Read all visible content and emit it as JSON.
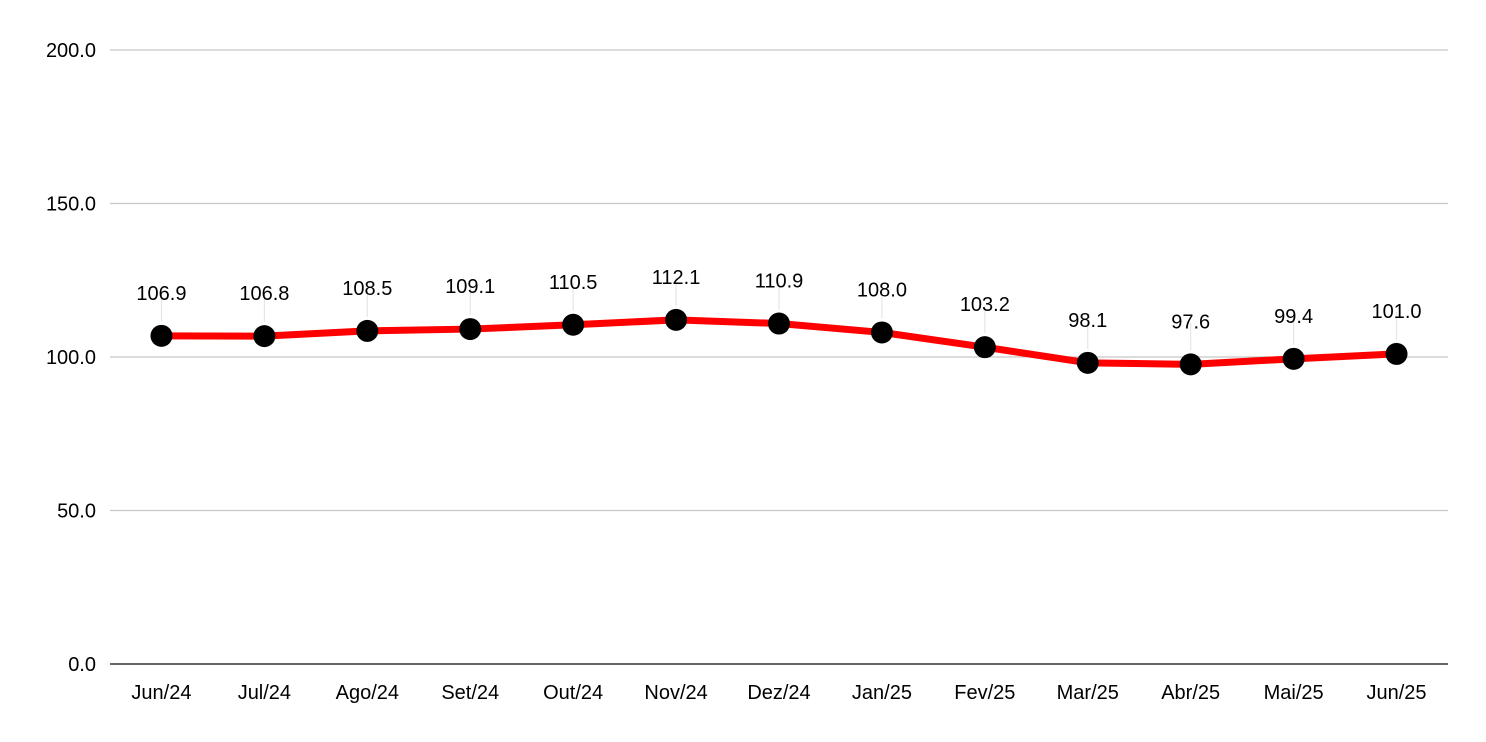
{
  "chart_data": {
    "type": "line",
    "title": "",
    "xlabel": "",
    "ylabel": "",
    "categories": [
      "Jun/24",
      "Jul/24",
      "Ago/24",
      "Set/24",
      "Out/24",
      "Nov/24",
      "Dez/24",
      "Jan/25",
      "Fev/25",
      "Mar/25",
      "Abr/25",
      "Mai/25",
      "Jun/25"
    ],
    "series": [
      {
        "values": [
          106.9,
          106.8,
          108.5,
          109.1,
          110.5,
          112.1,
          110.9,
          108.0,
          103.2,
          98.1,
          97.6,
          99.4,
          101.0
        ],
        "labels": [
          "106.9",
          "106.8",
          "108.5",
          "109.1",
          "110.5",
          "112.1",
          "110.9",
          "108.0",
          "103.2",
          "98.1",
          "97.6",
          "99.4",
          "101.0"
        ],
        "line_color": "#ff0000",
        "marker_color": "#000000"
      }
    ],
    "ylim": [
      0,
      200
    ],
    "yticks": [
      0,
      50,
      100,
      150,
      200
    ],
    "ytick_labels": [
      "0.0",
      "50.0",
      "100.0",
      "150.0",
      "200.0"
    ],
    "grid": true,
    "grid_color": "#c8c8c8",
    "legend": "none"
  }
}
